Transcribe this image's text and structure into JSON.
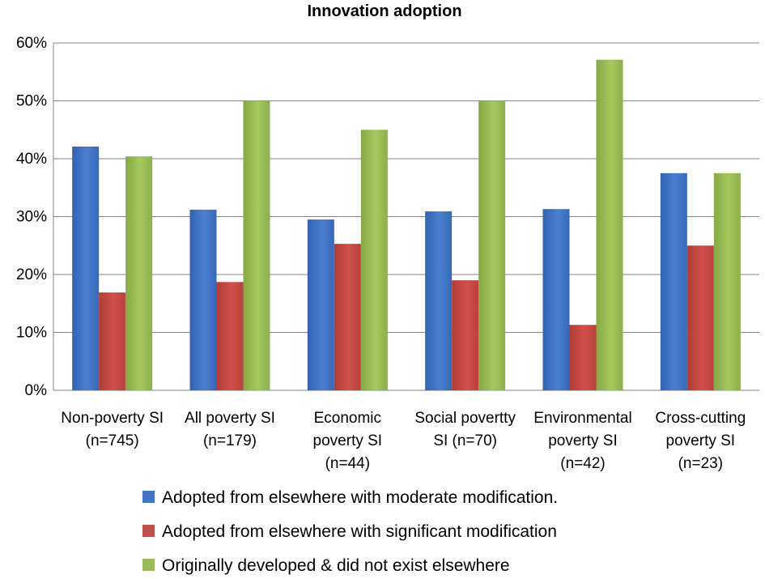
{
  "chart_data": {
    "type": "bar",
    "title": "Innovation adoption",
    "categories": [
      [
        "Non-poverty SI",
        "(n=745)"
      ],
      [
        "All poverty SI",
        "(n=179)"
      ],
      [
        "Economic",
        "poverty SI",
        "(n=44)"
      ],
      [
        "Social povertty",
        "SI (n=70)"
      ],
      [
        "Environmental",
        "poverty SI",
        "(n=42)"
      ],
      [
        "Cross-cutting",
        "poverty SI",
        "(n=23)"
      ]
    ],
    "series": [
      {
        "name": "Adopted from elsewhere with moderate modification.",
        "color": "#4472C4",
        "values": [
          42.1,
          31.2,
          29.5,
          30.9,
          31.3,
          37.5
        ]
      },
      {
        "name": "Adopted from elsewhere with significant modification",
        "color": "#C0504D",
        "values": [
          16.9,
          18.7,
          25.3,
          19.0,
          11.3,
          25.0
        ]
      },
      {
        "name": "Originally developed & did not exist elsewhere",
        "color": "#9BBB59",
        "values": [
          40.4,
          50.0,
          45.0,
          50.0,
          57.1,
          37.5
        ]
      }
    ],
    "ylim": [
      0,
      60
    ],
    "yticks": [
      "0%",
      "10%",
      "20%",
      "30%",
      "40%",
      "50%",
      "60%"
    ],
    "grid": true,
    "legend_position": "bottom"
  }
}
